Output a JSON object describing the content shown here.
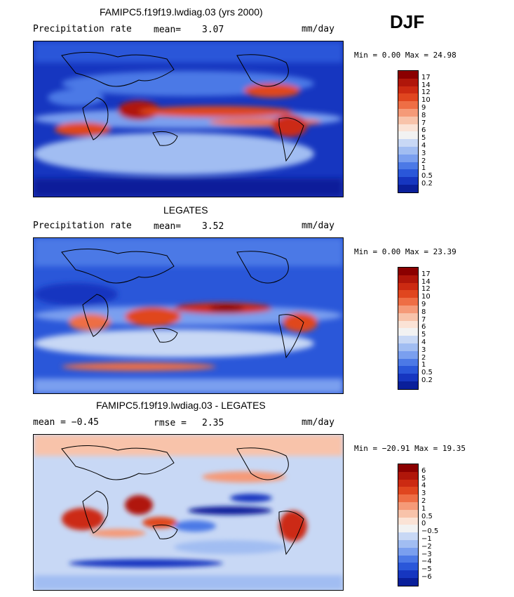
{
  "season": "DJF",
  "panels": [
    {
      "title": "FAMIPC5.f19f19.lwdiag.03 (yrs 2000)",
      "left_label": "Precipitation rate",
      "stat_label": "mean=",
      "stat_value": "3.07",
      "units": "mm/day",
      "range_text": "Min =   0.00 Max =  24.98"
    },
    {
      "title": "LEGATES",
      "left_label": "Precipitation rate",
      "stat_label": "mean=",
      "stat_value": "3.52",
      "units": "mm/day",
      "range_text": "Min =   0.00 Max =  23.39"
    },
    {
      "title": "FAMIPC5.f19f19.lwdiag.03 - LEGATES",
      "left_label": "mean =  −0.45",
      "stat_label": "rmse =",
      "stat_value": "2.35",
      "units": "mm/day",
      "range_text": "Min = −20.91 Max =  19.35"
    }
  ],
  "colorbars": {
    "precip": {
      "labels": [
        "17",
        "14",
        "12",
        "10",
        "9",
        "8",
        "7",
        "6",
        "5",
        "4",
        "3",
        "2",
        "1",
        "0.5",
        "0.2"
      ],
      "colors": [
        "#8b0000",
        "#b0160a",
        "#cc2a12",
        "#e0461f",
        "#ee6e45",
        "#f59a78",
        "#f8c3aa",
        "#fbe3d6",
        "#f2f2f2",
        "#c8d8f5",
        "#a1bdf2",
        "#7a9fef",
        "#4c79e6",
        "#2a57d9",
        "#1636c0",
        "#0a1f9a"
      ]
    },
    "diff": {
      "labels": [
        "6",
        "5",
        "4",
        "3",
        "2",
        "1",
        "0.5",
        "0",
        "−0.5",
        "−1",
        "−2",
        "−3",
        "−4",
        "−5",
        "−6"
      ],
      "colors": [
        "#8b0000",
        "#b0160a",
        "#cc2a12",
        "#e0461f",
        "#ee6e45",
        "#f59a78",
        "#f8c3aa",
        "#fbe3d6",
        "#f2f2f2",
        "#c8d8f5",
        "#a1bdf2",
        "#7a9fef",
        "#4c79e6",
        "#2a57d9",
        "#1636c0",
        "#0a1f9a"
      ]
    }
  }
}
